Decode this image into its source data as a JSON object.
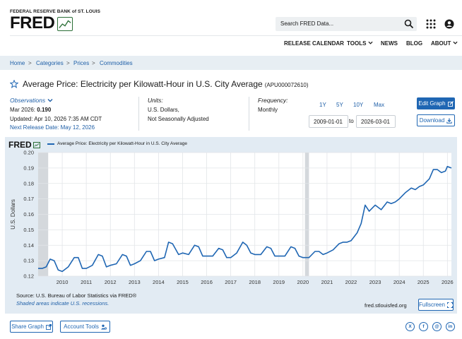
{
  "header": {
    "org_name": "FEDERAL RESERVE BANK of ST. LOUIS",
    "logo_text": "FRED",
    "search_placeholder": "Search FRED Data...",
    "nav": [
      "RELEASE CALENDAR",
      "TOOLS",
      "NEWS",
      "BLOG",
      "ABOUT"
    ]
  },
  "breadcrumb": [
    "Home",
    "Categories",
    "Prices",
    "Commodities"
  ],
  "series": {
    "title": "Average Price: Electricity per Kilowatt-Hour in U.S. City Average",
    "id": "(APU000072610)"
  },
  "meta": {
    "observations_label": "Observations",
    "obs_date": "Mar 2026:",
    "obs_value": "0.190",
    "updated": "Updated: Apr 10, 2026 7:35 AM CDT",
    "next_release": "Next Release Date: May 12, 2026",
    "units_label": "Units:",
    "units_line1": "U.S. Dollars,",
    "units_line2": "Not Seasonally Adjusted",
    "frequency_label": "Frequency:",
    "frequency_value": "Monthly"
  },
  "controls": {
    "ranges": [
      "1Y",
      "5Y",
      "10Y",
      "Max"
    ],
    "start_date": "2009-01-01",
    "to_label": "to",
    "end_date": "2026-03-01",
    "edit_graph": "Edit Graph",
    "download": "Download",
    "fullscreen": "Fullscreen"
  },
  "chart": {
    "brand": "FRED",
    "legend": "Average Price: Electricity per Kilowatt-Hour in U.S. City Average",
    "source": "Source: U.S. Bureau of Labor Statistics via FRED®",
    "shade_note": "Shaded areas indicate U.S. recessions.",
    "site": "fred.stlouisfed.org"
  },
  "chart_data": {
    "type": "line",
    "title": "Average Price: Electricity per Kilowatt-Hour in U.S. City Average",
    "ylabel": "U.S. Dollars",
    "xlabel": "",
    "ylim": [
      0.12,
      0.2
    ],
    "xlim": [
      "2009-01-01",
      "2026-03-01"
    ],
    "y_ticks": [
      0.12,
      0.13,
      0.14,
      0.15,
      0.16,
      0.17,
      0.18,
      0.19,
      0.2
    ],
    "x_ticks": [
      "2010",
      "2011",
      "2012",
      "2013",
      "2014",
      "2015",
      "2016",
      "2017",
      "2018",
      "2019",
      "2020",
      "2021",
      "2022",
      "2023",
      "2024",
      "2025",
      "2026"
    ],
    "recessions": [
      [
        "2009-01-01",
        "2009-06-01"
      ],
      [
        "2020-02-01",
        "2020-04-01"
      ]
    ],
    "grid": true,
    "color": "#1f66b3",
    "series": [
      {
        "name": "Average Price: Electricity per Kilowatt-Hour in U.S. City Average",
        "points": [
          [
            "2009-01",
            0.125
          ],
          [
            "2009-03",
            0.125
          ],
          [
            "2009-05",
            0.126
          ],
          [
            "2009-07",
            0.131
          ],
          [
            "2009-09",
            0.13
          ],
          [
            "2009-11",
            0.124
          ],
          [
            "2010-01",
            0.123
          ],
          [
            "2010-04",
            0.126
          ],
          [
            "2010-07",
            0.132
          ],
          [
            "2010-09",
            0.132
          ],
          [
            "2010-11",
            0.125
          ],
          [
            "2011-01",
            0.125
          ],
          [
            "2011-04",
            0.127
          ],
          [
            "2011-07",
            0.134
          ],
          [
            "2011-09",
            0.133
          ],
          [
            "2011-11",
            0.126
          ],
          [
            "2012-01",
            0.127
          ],
          [
            "2012-04",
            0.128
          ],
          [
            "2012-07",
            0.134
          ],
          [
            "2012-09",
            0.133
          ],
          [
            "2012-11",
            0.127
          ],
          [
            "2013-01",
            0.128
          ],
          [
            "2013-04",
            0.13
          ],
          [
            "2013-07",
            0.136
          ],
          [
            "2013-09",
            0.136
          ],
          [
            "2013-11",
            0.13
          ],
          [
            "2014-01",
            0.131
          ],
          [
            "2014-04",
            0.132
          ],
          [
            "2014-06",
            0.142
          ],
          [
            "2014-08",
            0.141
          ],
          [
            "2014-11",
            0.134
          ],
          [
            "2015-01",
            0.135
          ],
          [
            "2015-04",
            0.134
          ],
          [
            "2015-07",
            0.14
          ],
          [
            "2015-09",
            0.139
          ],
          [
            "2015-11",
            0.133
          ],
          [
            "2016-01",
            0.133
          ],
          [
            "2016-04",
            0.133
          ],
          [
            "2016-07",
            0.138
          ],
          [
            "2016-09",
            0.137
          ],
          [
            "2016-11",
            0.132
          ],
          [
            "2017-01",
            0.132
          ],
          [
            "2017-04",
            0.135
          ],
          [
            "2017-07",
            0.142
          ],
          [
            "2017-09",
            0.14
          ],
          [
            "2017-11",
            0.135
          ],
          [
            "2018-01",
            0.134
          ],
          [
            "2018-04",
            0.134
          ],
          [
            "2018-07",
            0.139
          ],
          [
            "2018-09",
            0.138
          ],
          [
            "2018-11",
            0.133
          ],
          [
            "2019-01",
            0.133
          ],
          [
            "2019-04",
            0.133
          ],
          [
            "2019-07",
            0.139
          ],
          [
            "2019-09",
            0.138
          ],
          [
            "2019-11",
            0.133
          ],
          [
            "2020-01",
            0.132
          ],
          [
            "2020-04",
            0.132
          ],
          [
            "2020-07",
            0.136
          ],
          [
            "2020-09",
            0.136
          ],
          [
            "2020-11",
            0.134
          ],
          [
            "2021-01",
            0.135
          ],
          [
            "2021-04",
            0.137
          ],
          [
            "2021-07",
            0.141
          ],
          [
            "2021-09",
            0.142
          ],
          [
            "2021-11",
            0.142
          ],
          [
            "2022-01",
            0.143
          ],
          [
            "2022-04",
            0.148
          ],
          [
            "2022-06",
            0.154
          ],
          [
            "2022-08",
            0.166
          ],
          [
            "2022-10",
            0.162
          ],
          [
            "2023-01",
            0.166
          ],
          [
            "2023-04",
            0.163
          ],
          [
            "2023-07",
            0.168
          ],
          [
            "2023-09",
            0.167
          ],
          [
            "2023-11",
            0.168
          ],
          [
            "2024-01",
            0.17
          ],
          [
            "2024-04",
            0.174
          ],
          [
            "2024-07",
            0.177
          ],
          [
            "2024-09",
            0.176
          ],
          [
            "2024-11",
            0.178
          ],
          [
            "2025-01",
            0.179
          ],
          [
            "2025-04",
            0.183
          ],
          [
            "2025-06",
            0.189
          ],
          [
            "2025-08",
            0.189
          ],
          [
            "2025-10",
            0.187
          ],
          [
            "2025-12",
            0.188
          ],
          [
            "2026-01",
            0.191
          ],
          [
            "2026-03",
            0.19
          ]
        ]
      }
    ]
  },
  "footer": {
    "share_graph": "Share Graph",
    "account_tools": "Account Tools",
    "social": [
      "X",
      "f",
      "@",
      "in"
    ]
  }
}
